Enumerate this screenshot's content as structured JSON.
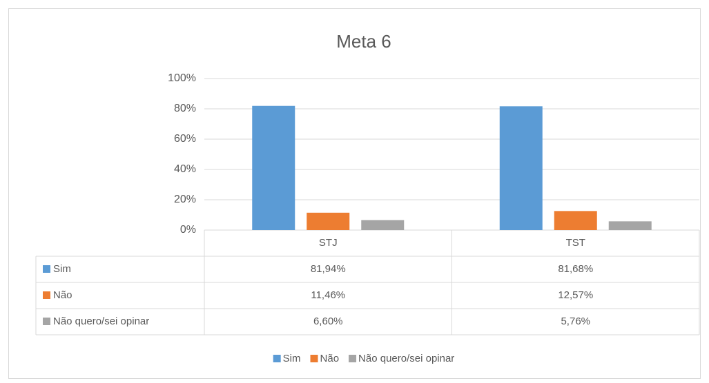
{
  "chart_data": {
    "type": "bar",
    "title": "Meta 6",
    "categories": [
      "STJ",
      "TST"
    ],
    "series": [
      {
        "name": "Sim",
        "color": "#5b9bd5",
        "values": [
          81.94,
          81.68
        ],
        "value_labels": [
          "81,94%",
          "81,68%"
        ]
      },
      {
        "name": "Não",
        "color": "#ed7d31",
        "values": [
          11.46,
          12.57
        ],
        "value_labels": [
          "11,46%",
          "12,57%"
        ]
      },
      {
        "name": "Não quero/sei opinar",
        "color": "#a5a5a5",
        "values": [
          6.6,
          5.76
        ],
        "value_labels": [
          "6,60%",
          "5,76%"
        ]
      }
    ],
    "ylim": [
      0,
      100
    ],
    "yticks": [
      {
        "value": 0,
        "label": "0%"
      },
      {
        "value": 20,
        "label": "20%"
      },
      {
        "value": 40,
        "label": "40%"
      },
      {
        "value": 60,
        "label": "60%"
      },
      {
        "value": 80,
        "label": "80%"
      },
      {
        "value": 100,
        "label": "100%"
      }
    ],
    "grid": true,
    "legend": "bottom"
  }
}
